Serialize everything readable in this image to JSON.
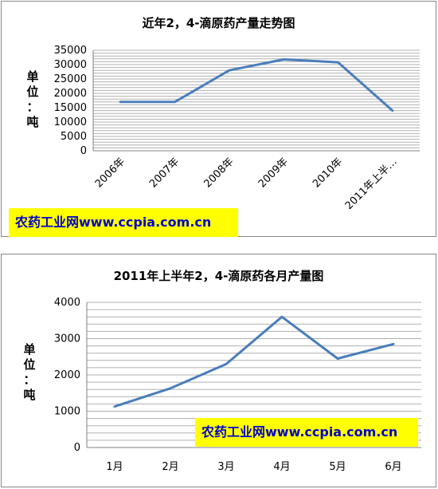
{
  "chart_data": [
    {
      "type": "line",
      "title": "近年2，4-滴原药产量走势图",
      "ylabel": "单位：吨",
      "xlabel": "",
      "categories": [
        "2006年",
        "2007年",
        "2008年",
        "2009年",
        "2010年",
        "2011年上半…"
      ],
      "values": [
        17000,
        17000,
        28000,
        31800,
        30800,
        14000
      ],
      "ylim": [
        0,
        35000
      ],
      "yticks": [
        "35000",
        "30000",
        "25000",
        "20000",
        "15000",
        "10000",
        "5000",
        "0"
      ],
      "grid": true,
      "line_color": "#4a7ebb"
    },
    {
      "type": "line",
      "title": "2011年上半年2，4-滴原药各月产量图",
      "ylabel": "单位：吨",
      "xlabel": "",
      "categories": [
        "1月",
        "2月",
        "3月",
        "4月",
        "5月",
        "6月"
      ],
      "values": [
        1130,
        1630,
        2300,
        3600,
        2450,
        2850
      ],
      "ylim": [
        0,
        4000
      ],
      "yticks": [
        "4000",
        "3000",
        "2000",
        "1000",
        "0"
      ],
      "grid": true,
      "line_color": "#4a7ebb"
    }
  ],
  "watermark": "农药工业网www.ccpia.com.cn",
  "colors": {
    "watermark_bg": "#ffff00",
    "watermark_text": "#0000cc",
    "grid": "#b0b0b0"
  }
}
